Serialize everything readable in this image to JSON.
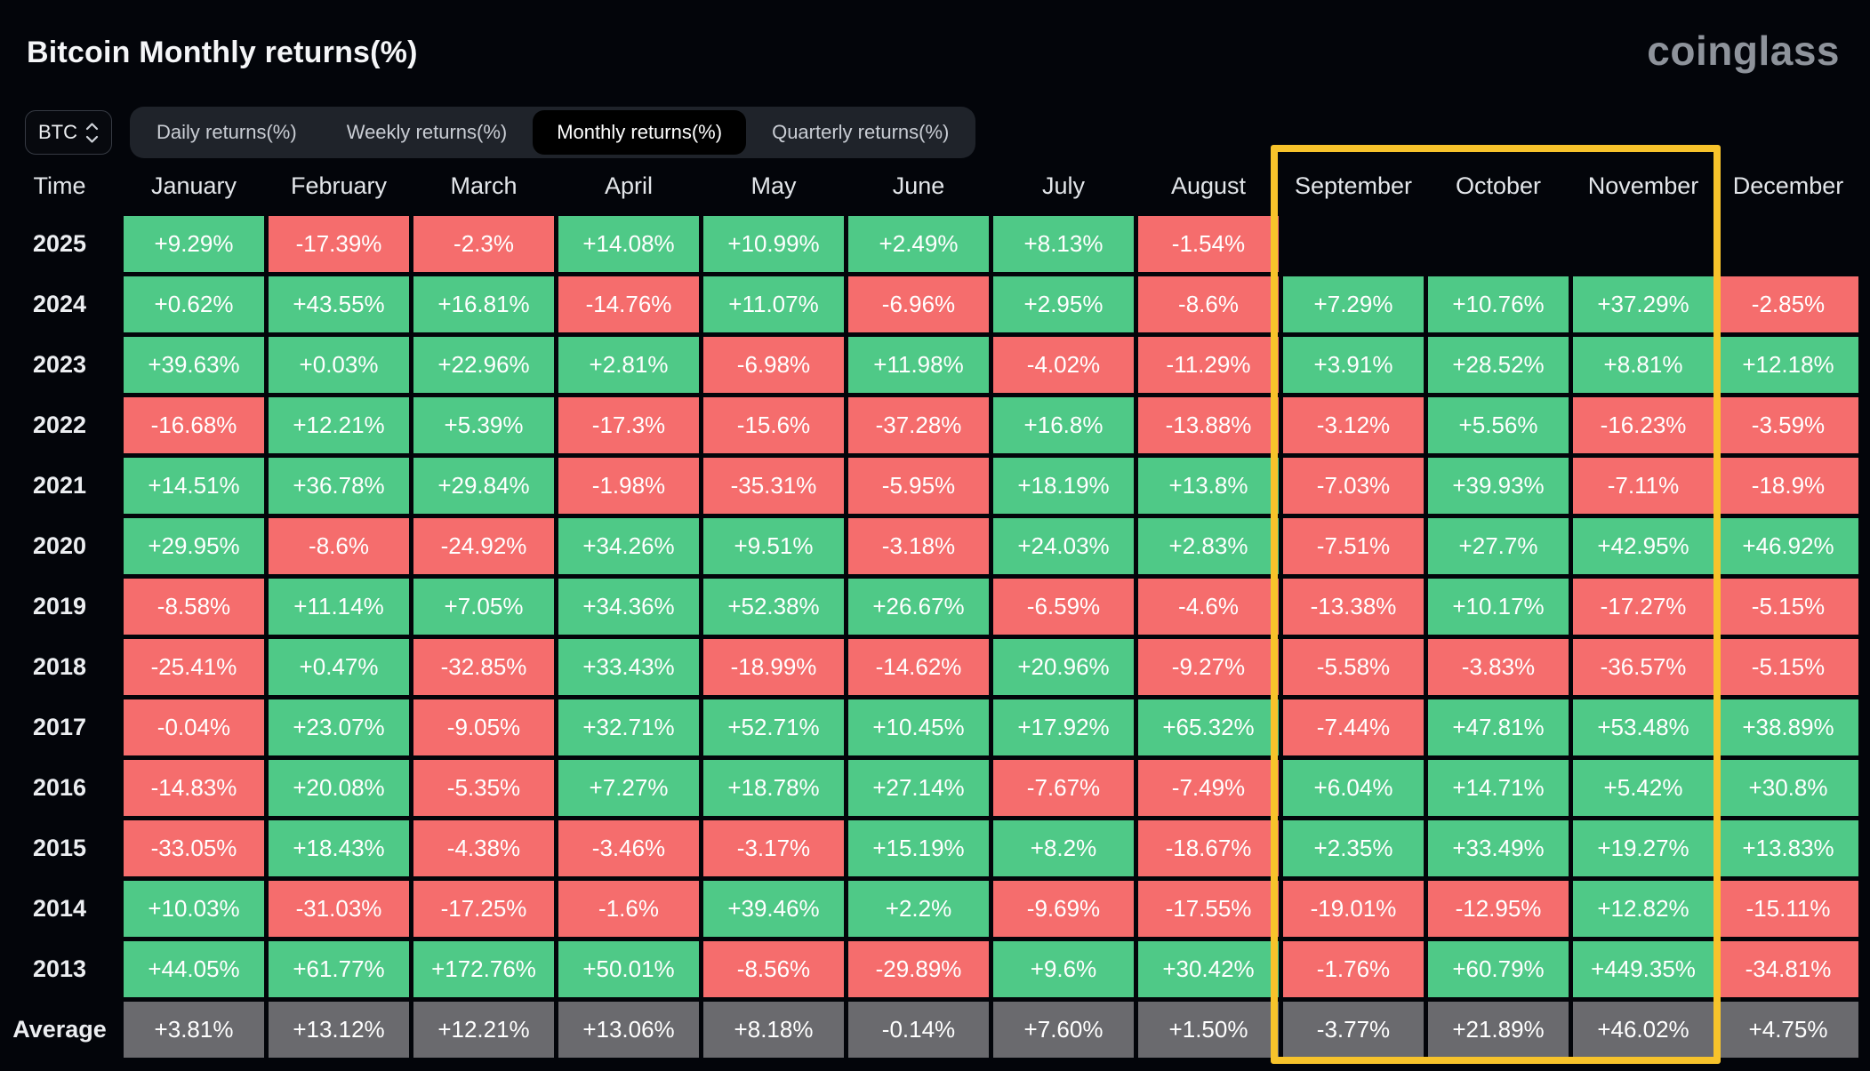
{
  "header": {
    "title": "Bitcoin Monthly returns(%)",
    "logo": "coinglass"
  },
  "controls": {
    "coin": "BTC",
    "tabs": [
      {
        "label": "Daily returns(%)",
        "active": false
      },
      {
        "label": "Weekly returns(%)",
        "active": false
      },
      {
        "label": "Monthly returns(%)",
        "active": true
      },
      {
        "label": "Quarterly returns(%)",
        "active": false
      }
    ]
  },
  "colors": {
    "positive": "#4FC987",
    "negative": "#F56D6D",
    "average_bg": "#6A6A6E",
    "highlight": "#F7C32B",
    "page_bg": "#03050A"
  },
  "table": {
    "time_header": "Time",
    "months": [
      "January",
      "February",
      "March",
      "April",
      "May",
      "June",
      "July",
      "August",
      "September",
      "October",
      "November",
      "December"
    ],
    "rows": [
      {
        "year": "2025",
        "values": [
          "+9.29%",
          "-17.39%",
          "-2.3%",
          "+14.08%",
          "+10.99%",
          "+2.49%",
          "+8.13%",
          "-1.54%",
          "",
          "",
          "",
          ""
        ]
      },
      {
        "year": "2024",
        "values": [
          "+0.62%",
          "+43.55%",
          "+16.81%",
          "-14.76%",
          "+11.07%",
          "-6.96%",
          "+2.95%",
          "-8.6%",
          "+7.29%",
          "+10.76%",
          "+37.29%",
          "-2.85%"
        ]
      },
      {
        "year": "2023",
        "values": [
          "+39.63%",
          "+0.03%",
          "+22.96%",
          "+2.81%",
          "-6.98%",
          "+11.98%",
          "-4.02%",
          "-11.29%",
          "+3.91%",
          "+28.52%",
          "+8.81%",
          "+12.18%"
        ]
      },
      {
        "year": "2022",
        "values": [
          "-16.68%",
          "+12.21%",
          "+5.39%",
          "-17.3%",
          "-15.6%",
          "-37.28%",
          "+16.8%",
          "-13.88%",
          "-3.12%",
          "+5.56%",
          "-16.23%",
          "-3.59%"
        ]
      },
      {
        "year": "2021",
        "values": [
          "+14.51%",
          "+36.78%",
          "+29.84%",
          "-1.98%",
          "-35.31%",
          "-5.95%",
          "+18.19%",
          "+13.8%",
          "-7.03%",
          "+39.93%",
          "-7.11%",
          "-18.9%"
        ]
      },
      {
        "year": "2020",
        "values": [
          "+29.95%",
          "-8.6%",
          "-24.92%",
          "+34.26%",
          "+9.51%",
          "-3.18%",
          "+24.03%",
          "+2.83%",
          "-7.51%",
          "+27.7%",
          "+42.95%",
          "+46.92%"
        ]
      },
      {
        "year": "2019",
        "values": [
          "-8.58%",
          "+11.14%",
          "+7.05%",
          "+34.36%",
          "+52.38%",
          "+26.67%",
          "-6.59%",
          "-4.6%",
          "-13.38%",
          "+10.17%",
          "-17.27%",
          "-5.15%"
        ]
      },
      {
        "year": "2018",
        "values": [
          "-25.41%",
          "+0.47%",
          "-32.85%",
          "+33.43%",
          "-18.99%",
          "-14.62%",
          "+20.96%",
          "-9.27%",
          "-5.58%",
          "-3.83%",
          "-36.57%",
          "-5.15%"
        ]
      },
      {
        "year": "2017",
        "values": [
          "-0.04%",
          "+23.07%",
          "-9.05%",
          "+32.71%",
          "+52.71%",
          "+10.45%",
          "+17.92%",
          "+65.32%",
          "-7.44%",
          "+47.81%",
          "+53.48%",
          "+38.89%"
        ]
      },
      {
        "year": "2016",
        "values": [
          "-14.83%",
          "+20.08%",
          "-5.35%",
          "+7.27%",
          "+18.78%",
          "+27.14%",
          "-7.67%",
          "-7.49%",
          "+6.04%",
          "+14.71%",
          "+5.42%",
          "+30.8%"
        ]
      },
      {
        "year": "2015",
        "values": [
          "-33.05%",
          "+18.43%",
          "-4.38%",
          "-3.46%",
          "-3.17%",
          "+15.19%",
          "+8.2%",
          "-18.67%",
          "+2.35%",
          "+33.49%",
          "+19.27%",
          "+13.83%"
        ]
      },
      {
        "year": "2014",
        "values": [
          "+10.03%",
          "-31.03%",
          "-17.25%",
          "-1.6%",
          "+39.46%",
          "+2.2%",
          "-9.69%",
          "-17.55%",
          "-19.01%",
          "-12.95%",
          "+12.82%",
          "-15.11%"
        ]
      },
      {
        "year": "2013",
        "values": [
          "+44.05%",
          "+61.77%",
          "+172.76%",
          "+50.01%",
          "-8.56%",
          "-29.89%",
          "+9.6%",
          "+30.42%",
          "-1.76%",
          "+60.79%",
          "+449.35%",
          "-34.81%"
        ]
      },
      {
        "year": "Average",
        "values": [
          "+3.81%",
          "+13.12%",
          "+12.21%",
          "+13.06%",
          "+8.18%",
          "-0.14%",
          "+7.60%",
          "+1.50%",
          "-3.77%",
          "+21.89%",
          "+46.02%",
          "+4.75%"
        ]
      }
    ]
  },
  "highlight": {
    "months": [
      "September",
      "October",
      "November"
    ],
    "includes_average_row": true
  }
}
